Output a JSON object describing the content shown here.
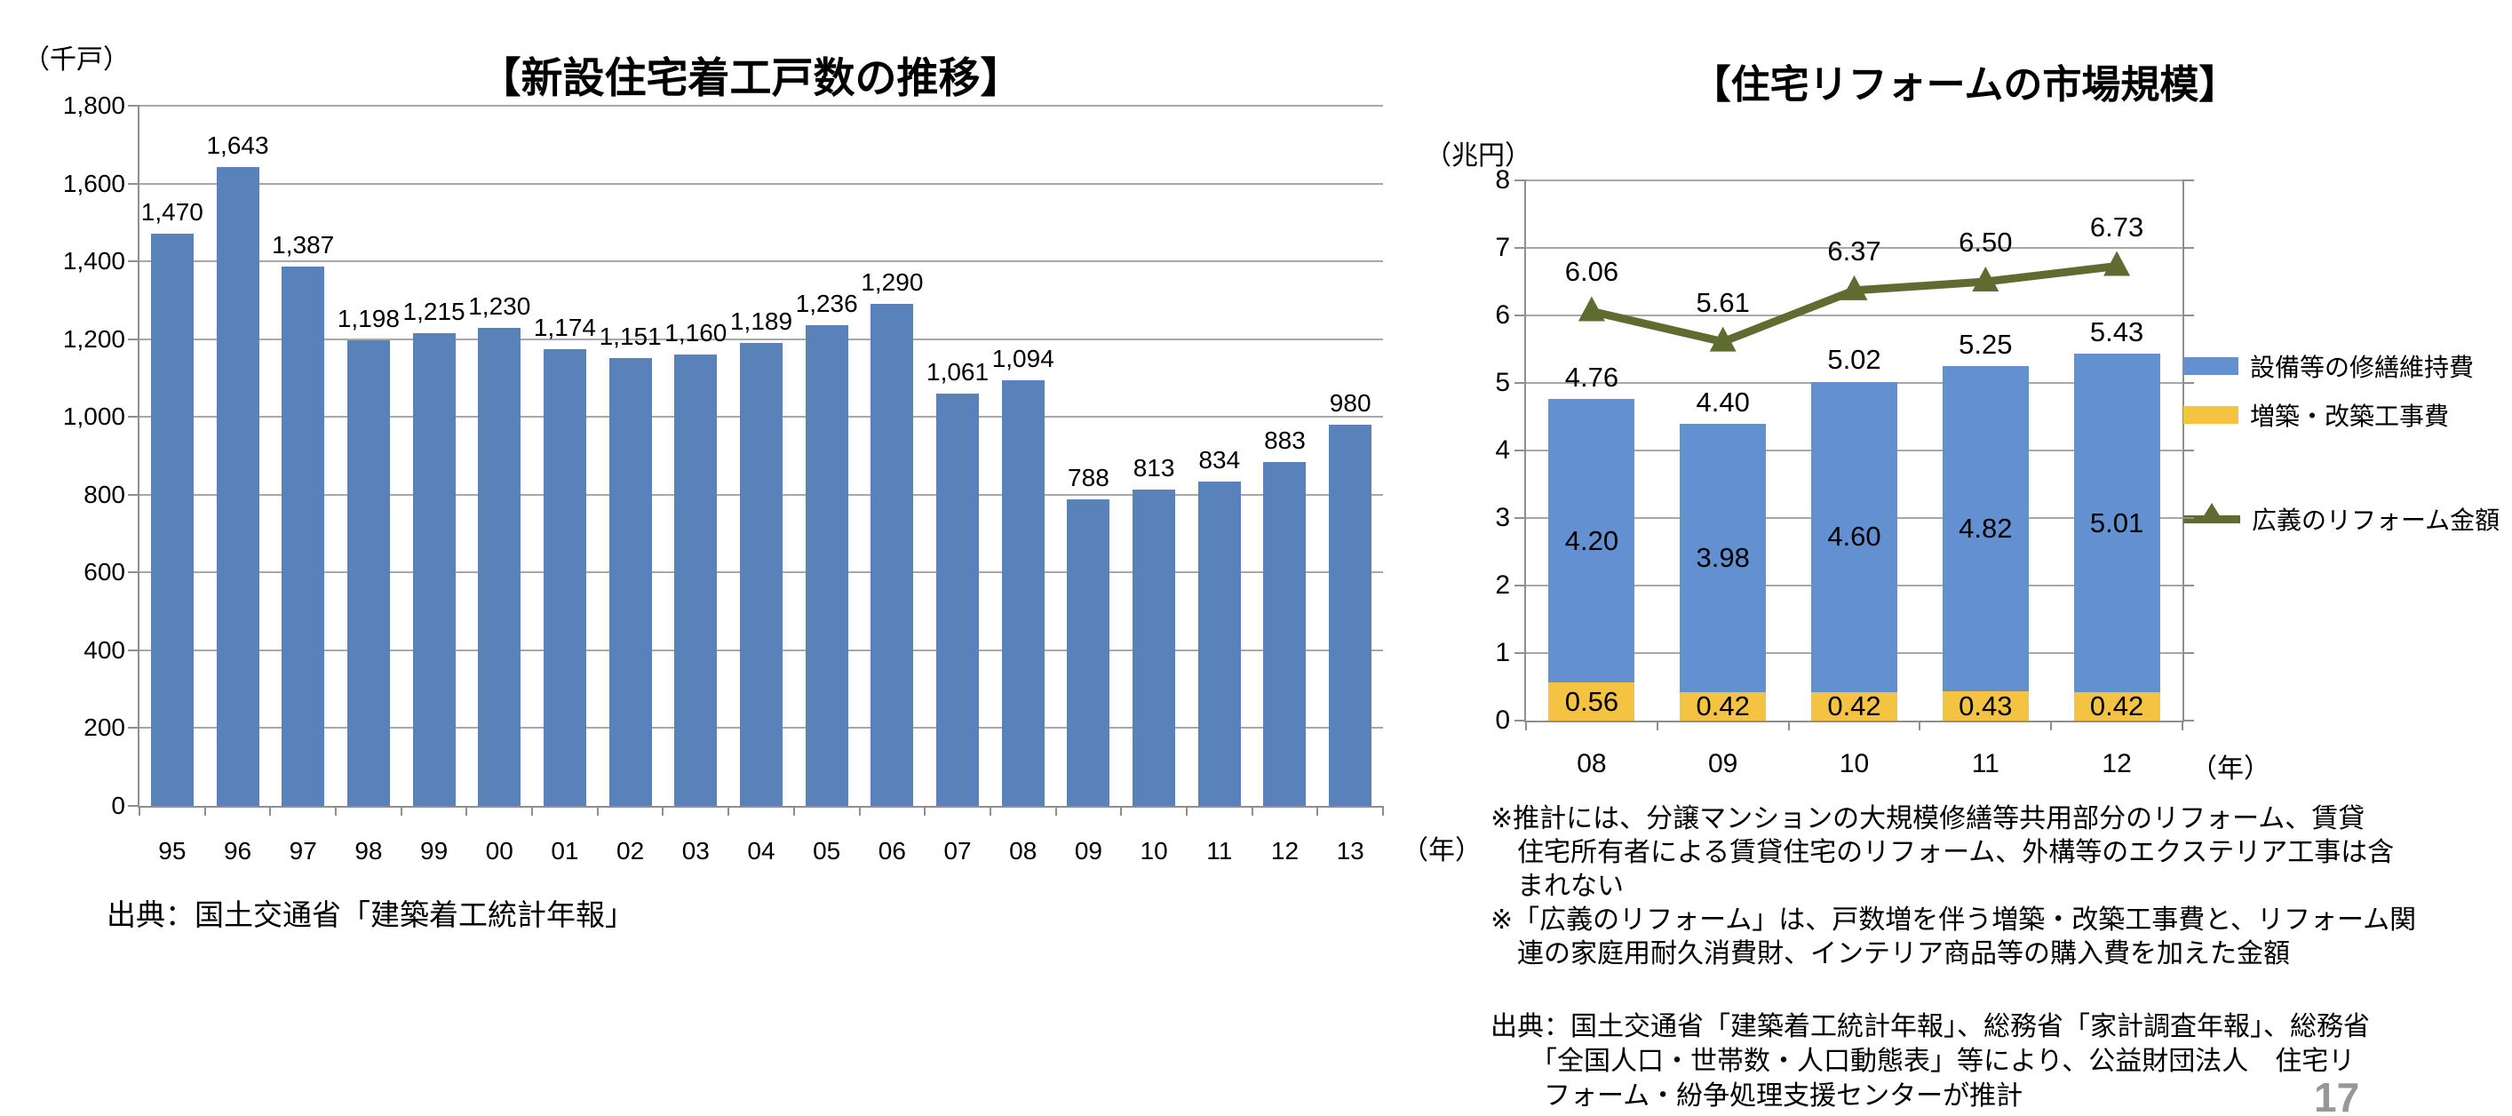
{
  "page": {
    "number": "17"
  },
  "left_chart": {
    "title": "【新設住宅着工戸数の推移】",
    "unit": "（千戸）",
    "year_suffix": "（年）",
    "source": "出典：国土交通省「建築着工統計年報」"
  },
  "right_chart": {
    "title": "【住宅リフォームの市場規模】",
    "unit": "（兆円）",
    "year_suffix": "（年）",
    "legend": [
      {
        "label": "設備等の修繕維持費",
        "color": "#6290d0",
        "marker": "bar"
      },
      {
        "label": "増築・改築工事費",
        "color": "#f5c342",
        "marker": "bar"
      },
      {
        "label": "広義のリフォーム金額",
        "color": "#5f6b30",
        "marker": "line"
      }
    ],
    "notes": "※推計には、分譲マンションの大規模修繕等共用部分のリフォーム、賃貸\n　住宅所有者による賃貸住宅のリフォーム、外構等のエクステリア工事は含\n　まれない\n※「広義のリフォーム」は、戸数増を伴う増築・改築工事費と、リフォーム関\n　連の家庭用耐久消費財、インテリア商品等の購入費を加えた金額",
    "source": "出典：国土交通省「建築着工統計年報」、総務省「家計調査年報」、総務省\n　　「全国人口・世帯数・人口動態表」等により、公益財団法人　住宅リ\n　　フォーム・紛争処理支援センターが推計"
  },
  "chart_data": [
    {
      "type": "bar",
      "title": "【新設住宅着工戸数の推移】",
      "xlabel": "（年）",
      "ylabel": "（千戸）",
      "categories": [
        "95",
        "96",
        "97",
        "98",
        "99",
        "00",
        "01",
        "02",
        "03",
        "04",
        "05",
        "06",
        "07",
        "08",
        "09",
        "10",
        "11",
        "12",
        "13"
      ],
      "values": [
        1470,
        1643,
        1387,
        1198,
        1215,
        1230,
        1174,
        1151,
        1160,
        1189,
        1236,
        1290,
        1061,
        1094,
        788,
        813,
        834,
        883,
        980
      ],
      "value_labels": [
        "1,470",
        "1,643",
        "1,387",
        "1,198",
        "1,215",
        "1,230",
        "1,174",
        "1,151",
        "1,160",
        "1,189",
        "1,236",
        "1,290",
        "1,061",
        "1,094",
        "788",
        "813",
        "834",
        "883",
        "980"
      ],
      "ylim": [
        0,
        1800
      ],
      "ytick_interval": 200,
      "ytick_labels": [
        "0",
        "200",
        "400",
        "600",
        "800",
        "1,000",
        "1,200",
        "1,400",
        "1,600",
        "1,800"
      ],
      "bar_color": "#5a82ba",
      "grid": true,
      "source": "出典：国土交通省「建築着工統計年報」"
    },
    {
      "type": "stacked-bar-line",
      "title": "【住宅リフォームの市場規模】",
      "xlabel": "（年）",
      "ylabel": "（兆円）",
      "categories": [
        "08",
        "09",
        "10",
        "11",
        "12"
      ],
      "series": [
        {
          "name": "増築・改築工事費",
          "chart": "bar",
          "color": "#f5c342",
          "values": [
            0.56,
            0.42,
            0.42,
            0.43,
            0.42
          ],
          "labels": [
            "0.56",
            "0.42",
            "0.42",
            "0.43",
            "0.42"
          ]
        },
        {
          "name": "設備等の修繕維持費",
          "chart": "bar",
          "color": "#6290d0",
          "values": [
            4.2,
            3.98,
            4.6,
            4.82,
            5.01
          ],
          "labels": [
            "4.20",
            "3.98",
            "4.60",
            "4.82",
            "5.01"
          ]
        },
        {
          "name": "広義のリフォーム金額",
          "chart": "line",
          "color": "#5f6b30",
          "values": [
            6.06,
            5.61,
            6.37,
            6.5,
            6.73
          ],
          "labels": [
            "6.06",
            "5.61",
            "6.37",
            "6.50",
            "6.73"
          ]
        }
      ],
      "stack_total_labels": [
        "4.76",
        "4.40",
        "5.02",
        "5.25",
        "5.43"
      ],
      "ylim": [
        0,
        8
      ],
      "ytick_interval": 1,
      "ytick_labels": [
        "0",
        "1",
        "2",
        "3",
        "4",
        "5",
        "6",
        "7",
        "8"
      ],
      "grid": true,
      "legend_position": "right"
    }
  ]
}
